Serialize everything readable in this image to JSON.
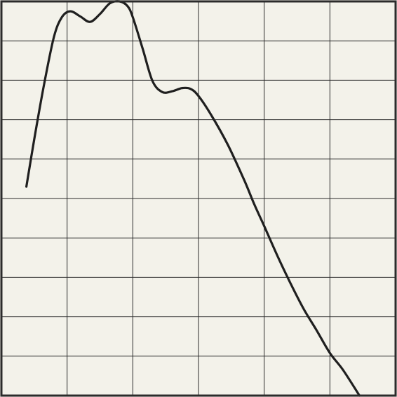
{
  "chart_data": {
    "type": "line",
    "title": "",
    "xlabel": "",
    "ylabel": "",
    "xlim": [
      0,
      6
    ],
    "ylim": [
      0,
      10
    ],
    "grid": true,
    "legend": "none",
    "series": [
      {
        "x": [
          0.38,
          0.5,
          0.65,
          0.8,
          0.92,
          1.05,
          1.2,
          1.35,
          1.5,
          1.65,
          1.8,
          1.92,
          2.0,
          2.15,
          2.3,
          2.45,
          2.6,
          2.75,
          2.88,
          3.0,
          3.2,
          3.45,
          3.7,
          3.85,
          4.0,
          4.2,
          4.4,
          4.6,
          4.8,
          5.0,
          5.2,
          5.45
        ],
        "y": [
          5.3,
          6.5,
          7.9,
          9.1,
          9.6,
          9.75,
          9.62,
          9.48,
          9.68,
          9.95,
          10.0,
          9.88,
          9.6,
          8.8,
          7.98,
          7.7,
          7.72,
          7.8,
          7.78,
          7.6,
          7.1,
          6.35,
          5.45,
          4.85,
          4.3,
          3.55,
          2.85,
          2.2,
          1.65,
          1.08,
          0.65,
          0.0
        ]
      }
    ]
  },
  "colors": {
    "background": "#f3f2ea",
    "grid": "#2b2b2b",
    "line": "#1f1f1f",
    "frame": "#2b2b2b"
  }
}
